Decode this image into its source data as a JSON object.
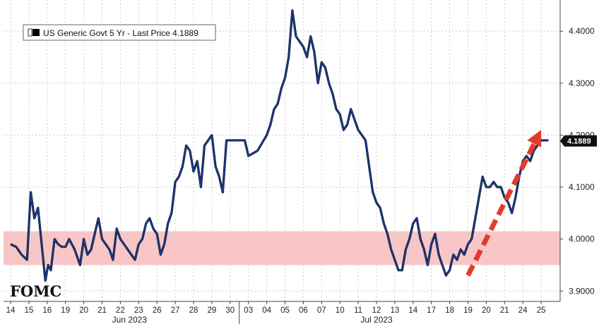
{
  "chart_data": {
    "type": "line",
    "title": "",
    "legend": {
      "label": "US Generic Govt 5 Yr - Last Price 4.1889",
      "placement": "top-left"
    },
    "last_price_label": "4.1889",
    "last_price": 4.1889,
    "annotation": "FOMC",
    "ylim": [
      3.88,
      4.46
    ],
    "y_ticks": [
      "3.9000",
      "4.0000",
      "4.1000",
      "4.2000",
      "4.3000",
      "4.4000"
    ],
    "x_ticks": [
      "14",
      "15",
      "16",
      "19",
      "20",
      "21",
      "22",
      "23",
      "26",
      "27",
      "28",
      "29",
      "30",
      "03",
      "04",
      "05",
      "06",
      "07",
      "10",
      "11",
      "12",
      "13",
      "14",
      "17",
      "18",
      "19",
      "20",
      "21",
      "24",
      "25"
    ],
    "month_labels": [
      "Jun 2023",
      "Jul 2023"
    ],
    "grid": true,
    "shaded_band": {
      "y_range": [
        3.95,
        4.015
      ],
      "color": "#f7bcbc"
    },
    "trend_arrow": {
      "from": {
        "x": "19",
        "y": 3.93
      },
      "to": {
        "x": "25",
        "y": 4.21
      },
      "color": "#e23b2e"
    },
    "series": [
      {
        "line_color": "#1f3d8a",
        "x": [
          0,
          0.3,
          0.6,
          0.9,
          1.1,
          1.3,
          1.5,
          1.7,
          1.9,
          2.05,
          2.2,
          2.4,
          2.6,
          2.8,
          3.0,
          3.2,
          3.5,
          3.8,
          4.0,
          4.2,
          4.4,
          4.6,
          4.8,
          5.0,
          5.2,
          5.4,
          5.6,
          5.8,
          6.0,
          6.2,
          6.4,
          6.6,
          6.8,
          7.0,
          7.2,
          7.4,
          7.6,
          7.8,
          8.0,
          8.2,
          8.4,
          8.6,
          8.8,
          9.0,
          9.2,
          9.4,
          9.6,
          9.8,
          10.0,
          10.2,
          10.4,
          10.6,
          10.8,
          11.0,
          11.2,
          11.4,
          11.6,
          11.8,
          12.0,
          12.2,
          12.4,
          12.6,
          12.8,
          13.0,
          13.5,
          14.0,
          14.2,
          14.4,
          14.6,
          14.8,
          15.0,
          15.2,
          15.4,
          15.6,
          15.8,
          16.0,
          16.2,
          16.4,
          16.6,
          16.8,
          17.0,
          17.2,
          17.4,
          17.6,
          17.8,
          18.0,
          18.2,
          18.4,
          18.6,
          18.8,
          19.0,
          19.2,
          19.4,
          19.6,
          19.8,
          20.0,
          20.2,
          20.4,
          20.6,
          20.8,
          21.0,
          21.2,
          21.4,
          21.6,
          21.8,
          22.0,
          22.2,
          22.4,
          22.6,
          22.8,
          23.0,
          23.2,
          23.4,
          23.6,
          23.8,
          24.0,
          24.2,
          24.4,
          24.6,
          24.8,
          25.0,
          25.2,
          25.4,
          25.6,
          25.8,
          26.0,
          26.2,
          26.4,
          26.6,
          26.8,
          27.0,
          27.2,
          27.4,
          27.6,
          27.8,
          28.0,
          28.2,
          28.4,
          28.6,
          28.8,
          29.0,
          29.2,
          29.4
        ],
        "values": [
          3.99,
          3.985,
          3.97,
          3.96,
          4.09,
          4.04,
          4.06,
          3.99,
          3.92,
          3.95,
          3.94,
          4.0,
          3.99,
          3.985,
          3.985,
          4.0,
          3.98,
          3.95,
          4.0,
          3.97,
          3.98,
          4.01,
          4.04,
          4.0,
          3.99,
          3.98,
          3.96,
          4.02,
          4.0,
          3.99,
          3.98,
          3.97,
          3.96,
          3.99,
          4.0,
          4.03,
          4.04,
          4.02,
          4.01,
          3.97,
          3.99,
          4.03,
          4.05,
          4.11,
          4.12,
          4.14,
          4.18,
          4.17,
          4.13,
          4.15,
          4.1,
          4.18,
          4.19,
          4.2,
          4.14,
          4.12,
          4.09,
          4.19,
          4.19,
          4.19,
          4.19,
          4.19,
          4.19,
          4.16,
          4.17,
          4.2,
          4.22,
          4.25,
          4.26,
          4.29,
          4.31,
          4.35,
          4.44,
          4.39,
          4.38,
          4.37,
          4.35,
          4.39,
          4.36,
          4.3,
          4.34,
          4.33,
          4.3,
          4.28,
          4.25,
          4.24,
          4.21,
          4.22,
          4.25,
          4.23,
          4.21,
          4.2,
          4.19,
          4.14,
          4.09,
          4.07,
          4.06,
          4.03,
          4.01,
          3.98,
          3.96,
          3.94,
          3.94,
          3.98,
          4.0,
          4.03,
          4.04,
          4.0,
          3.98,
          3.95,
          3.99,
          4.01,
          3.97,
          3.95,
          3.93,
          3.94,
          3.97,
          3.96,
          3.98,
          3.97,
          3.99,
          4.0,
          4.04,
          4.08,
          4.12,
          4.1,
          4.1,
          4.11,
          4.1,
          4.1,
          4.08,
          4.07,
          4.05,
          4.08,
          4.12,
          4.15,
          4.16,
          4.15,
          4.17,
          4.18,
          4.19,
          4.19,
          4.19
        ]
      }
    ]
  }
}
